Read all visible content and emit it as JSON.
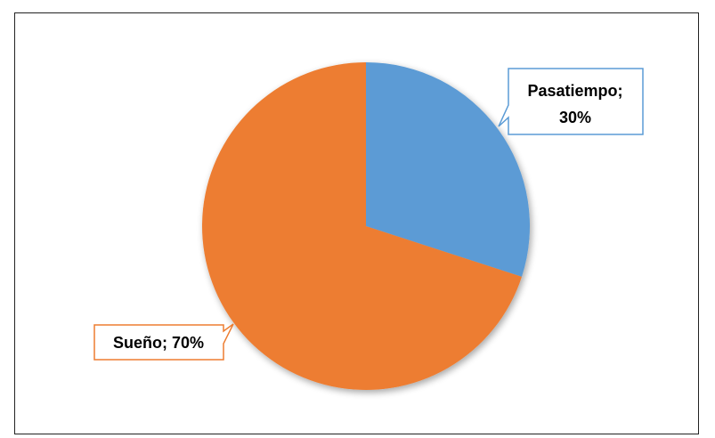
{
  "chart_data": {
    "type": "pie",
    "slices": [
      {
        "label": "Pasatiempo",
        "value": 30,
        "color": "#5B9BD5",
        "label_line1": "Pasatiempo;",
        "label_line2": "30%"
      },
      {
        "label": "Sueño",
        "value": 70,
        "color": "#ED7D31",
        "label_line1": "Sueño; 70%"
      }
    ],
    "title": "",
    "legend": "none",
    "data_labels": "callouts"
  }
}
